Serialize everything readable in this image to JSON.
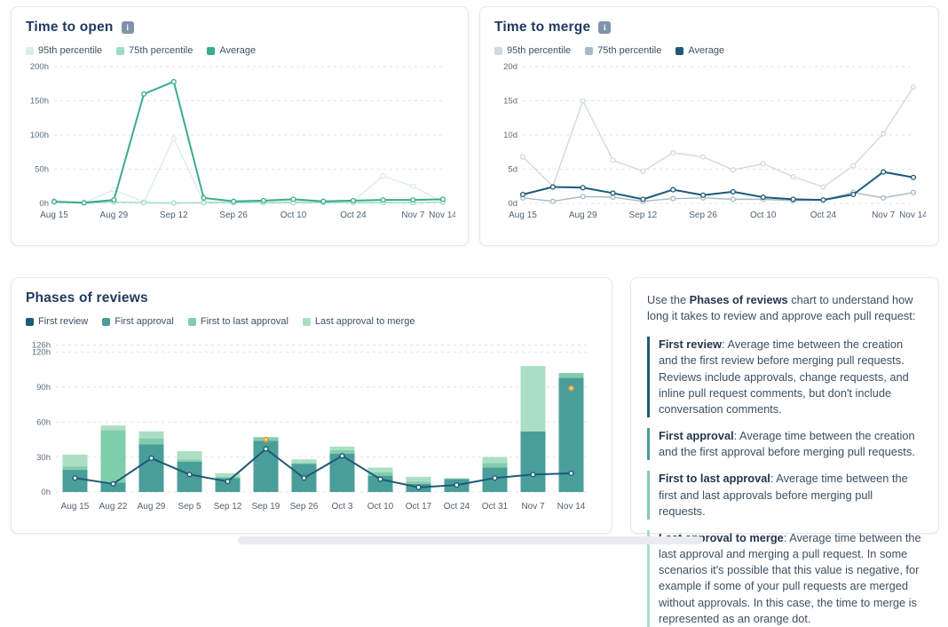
{
  "icons": {
    "info": "i"
  },
  "chart_data": [
    {
      "id": "time_to_open",
      "type": "line",
      "title": "Time to open",
      "unit": "hours",
      "categories": [
        "Aug 15",
        "Aug 22",
        "Aug 29",
        "Sep 5",
        "Sep 12",
        "Sep 19",
        "Sep 26",
        "Oct 3",
        "Oct 10",
        "Oct 17",
        "Oct 24",
        "Oct 31",
        "Nov 7",
        "Nov 14"
      ],
      "x_tick_indices": [
        0,
        2,
        4,
        6,
        8,
        10,
        12,
        13
      ],
      "ylim": [
        0,
        200
      ],
      "yticks": [
        {
          "v": 0,
          "label": "0h"
        },
        {
          "v": 50,
          "label": "50h"
        },
        {
          "v": 100,
          "label": "100h"
        },
        {
          "v": 150,
          "label": "150h"
        },
        {
          "v": 200,
          "label": "200h"
        }
      ],
      "grid": "dashed",
      "legend_position": "top",
      "series": [
        {
          "name": "95th percentile",
          "color": "#d9efe6",
          "width": 1.4,
          "values": [
            4,
            1,
            20,
            2,
            95,
            2,
            2,
            2,
            3,
            2,
            3,
            40,
            25,
            2
          ]
        },
        {
          "name": "75th percentile",
          "color": "#9cdcc2",
          "width": 1.4,
          "values": [
            2,
            0.5,
            2,
            1,
            0.5,
            1,
            1,
            1,
            1,
            1,
            1,
            1,
            1,
            2
          ]
        },
        {
          "name": "Average",
          "color": "#3bab8f",
          "width": 2,
          "values": [
            2.5,
            1,
            5,
            160,
            178,
            8,
            3,
            4,
            6,
            3,
            4,
            5,
            5,
            6
          ]
        }
      ],
      "legend": [
        {
          "label": "95th percentile",
          "color": "#d9efe6"
        },
        {
          "label": "75th percentile",
          "color": "#9cdcc2"
        },
        {
          "label": "Average",
          "color": "#3bab8f"
        }
      ]
    },
    {
      "id": "time_to_merge",
      "type": "line",
      "title": "Time to merge",
      "unit": "days",
      "categories": [
        "Aug 15",
        "Aug 22",
        "Aug 29",
        "Sep 5",
        "Sep 12",
        "Sep 19",
        "Sep 26",
        "Oct 3",
        "Oct 10",
        "Oct 17",
        "Oct 24",
        "Oct 31",
        "Nov 7",
        "Nov 14"
      ],
      "x_tick_indices": [
        0,
        2,
        4,
        6,
        8,
        10,
        12,
        13
      ],
      "ylim": [
        0,
        20
      ],
      "yticks": [
        {
          "v": 0,
          "label": "0d"
        },
        {
          "v": 5,
          "label": "5d"
        },
        {
          "v": 10,
          "label": "10d"
        },
        {
          "v": 15,
          "label": "15d"
        },
        {
          "v": 20,
          "label": "20d"
        }
      ],
      "grid": "dashed",
      "legend_position": "top",
      "series": [
        {
          "name": "95th percentile",
          "color": "#cfdae2",
          "width": 1.4,
          "values": [
            6.8,
            2.5,
            15,
            6.3,
            4.7,
            7.4,
            6.8,
            4.9,
            5.8,
            3.9,
            2.4,
            5.5,
            10.2,
            17
          ]
        },
        {
          "name": "75th percentile",
          "color": "#a7bac6",
          "width": 1.4,
          "values": [
            0.8,
            0.3,
            1.0,
            0.9,
            0.3,
            0.7,
            0.8,
            0.6,
            0.6,
            0.4,
            0.5,
            1.6,
            0.8,
            1.6
          ]
        },
        {
          "name": "Average",
          "color": "#1b5a78",
          "width": 2,
          "values": [
            1.3,
            2.4,
            2.3,
            1.5,
            0.6,
            2.0,
            1.2,
            1.7,
            0.9,
            0.6,
            0.5,
            1.3,
            4.6,
            3.8
          ]
        }
      ],
      "legend": [
        {
          "label": "95th percentile",
          "color": "#cfdae2"
        },
        {
          "label": "75th percentile",
          "color": "#a7bac6"
        },
        {
          "label": "Average",
          "color": "#1b5a78"
        }
      ]
    },
    {
      "id": "phases_of_reviews",
      "type": "stacked-bar-line",
      "title": "Phases of reviews",
      "unit": "hours",
      "categories": [
        "Aug 15",
        "Aug 22",
        "Aug 29",
        "Sep 5",
        "Sep 12",
        "Sep 19",
        "Sep 26",
        "Oct 3",
        "Oct 10",
        "Oct 17",
        "Oct 24",
        "Oct 31",
        "Nov 7",
        "Nov 14"
      ],
      "ylim": [
        0,
        134
      ],
      "yticks": [
        {
          "v": 0,
          "label": "0h"
        },
        {
          "v": 30,
          "label": "30h"
        },
        {
          "v": 60,
          "label": "60h"
        },
        {
          "v": 90,
          "label": "90h"
        },
        {
          "v": 120,
          "label": "120h"
        },
        {
          "v": 126,
          "label": "126h"
        }
      ],
      "grid": "dashed",
      "legend_position": "top",
      "bars": [
        {
          "name": "First approval",
          "color": "#4a9e9a",
          "values": [
            19,
            8,
            41,
            26,
            12,
            44,
            24,
            33,
            14,
            7,
            11,
            21,
            52,
            98
          ]
        },
        {
          "name": "First to last approval",
          "color": "#80cdac",
          "values": [
            3,
            45,
            5,
            2,
            1,
            3,
            1,
            3,
            3,
            2,
            0.5,
            4,
            0,
            4
          ]
        },
        {
          "name": "Last approval to merge",
          "color": "#aadfc3",
          "values": [
            10,
            4,
            6,
            7,
            3,
            0,
            3,
            3,
            4,
            4,
            0.5,
            5,
            56,
            0
          ]
        }
      ],
      "line": {
        "name": "First review",
        "color": "#1d5a78",
        "values": [
          12,
          7,
          29,
          15,
          9,
          37,
          12,
          31,
          11,
          4,
          6,
          12,
          15,
          16
        ]
      },
      "orange_dots": {
        "color": "#f0a132",
        "meaning": "time to merge shown as orange dot when last approval to merge is negative",
        "points": [
          {
            "category": "Sep 19",
            "index": 5,
            "value": 45
          },
          {
            "category": "Nov 14",
            "index": 13,
            "value": 89
          }
        ]
      },
      "legend": [
        {
          "label": "First review",
          "color": "#1d5a78"
        },
        {
          "label": "First approval",
          "color": "#4a9e9a"
        },
        {
          "label": "First to last approval",
          "color": "#80cdac"
        },
        {
          "label": "Last approval to merge",
          "color": "#aadfc3"
        }
      ]
    }
  ],
  "description_panel": {
    "intro_prefix": "Use the ",
    "intro_bold": "Phases of reviews",
    "intro_suffix": " chart to understand how long it takes to review and approve each pull request:",
    "items": [
      {
        "term": "First review",
        "color": "#1d5a78",
        "text": ": Average time between the creation and the first review before merging pull requests. Reviews include approvals, change requests, and inline pull request comments, but don't include conversation comments."
      },
      {
        "term": "First approval",
        "color": "#4a9e9a",
        "text": ": Average time between the creation and the first approval before merging pull requests."
      },
      {
        "term": "First to last approval",
        "color": "#80cdac",
        "text": ": Average time between the first and last approvals before merging pull requests."
      },
      {
        "term": "Last approval to merge",
        "color": "#aadfc3",
        "text": ": Average time between the last approval and merging a pull request. In some scenarios it's possible that this value is negative, for example if some of your pull requests are merged without approvals. In this case, the time to merge is represented as an orange dot."
      }
    ]
  }
}
